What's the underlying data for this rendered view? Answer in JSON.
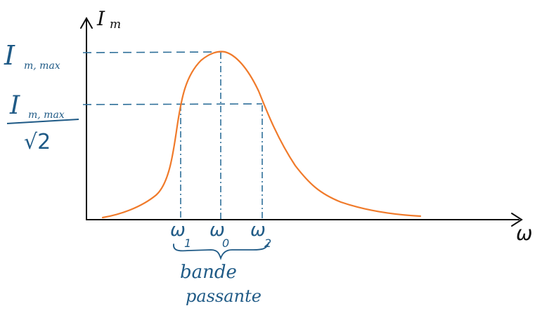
{
  "colors": {
    "axis": "#0f0f0f",
    "curve": "#f07a2a",
    "guides": "#2e6f99",
    "labels": "#1f5a86"
  },
  "axes": {
    "y_label": "I",
    "y_label_sub": "m",
    "x_label": "ω"
  },
  "levels": {
    "max_label_main": "I",
    "max_label_sub": "m, max",
    "half_label_main": "I",
    "half_label_sub": "m, max",
    "half_label_den": "√2"
  },
  "frequencies": [
    {
      "symbol": "ω",
      "sub": "1"
    },
    {
      "symbol": "ω",
      "sub": "0"
    },
    {
      "symbol": "ω",
      "sub": "2"
    }
  ],
  "band": {
    "line1": "bande",
    "line2": "passante"
  }
}
